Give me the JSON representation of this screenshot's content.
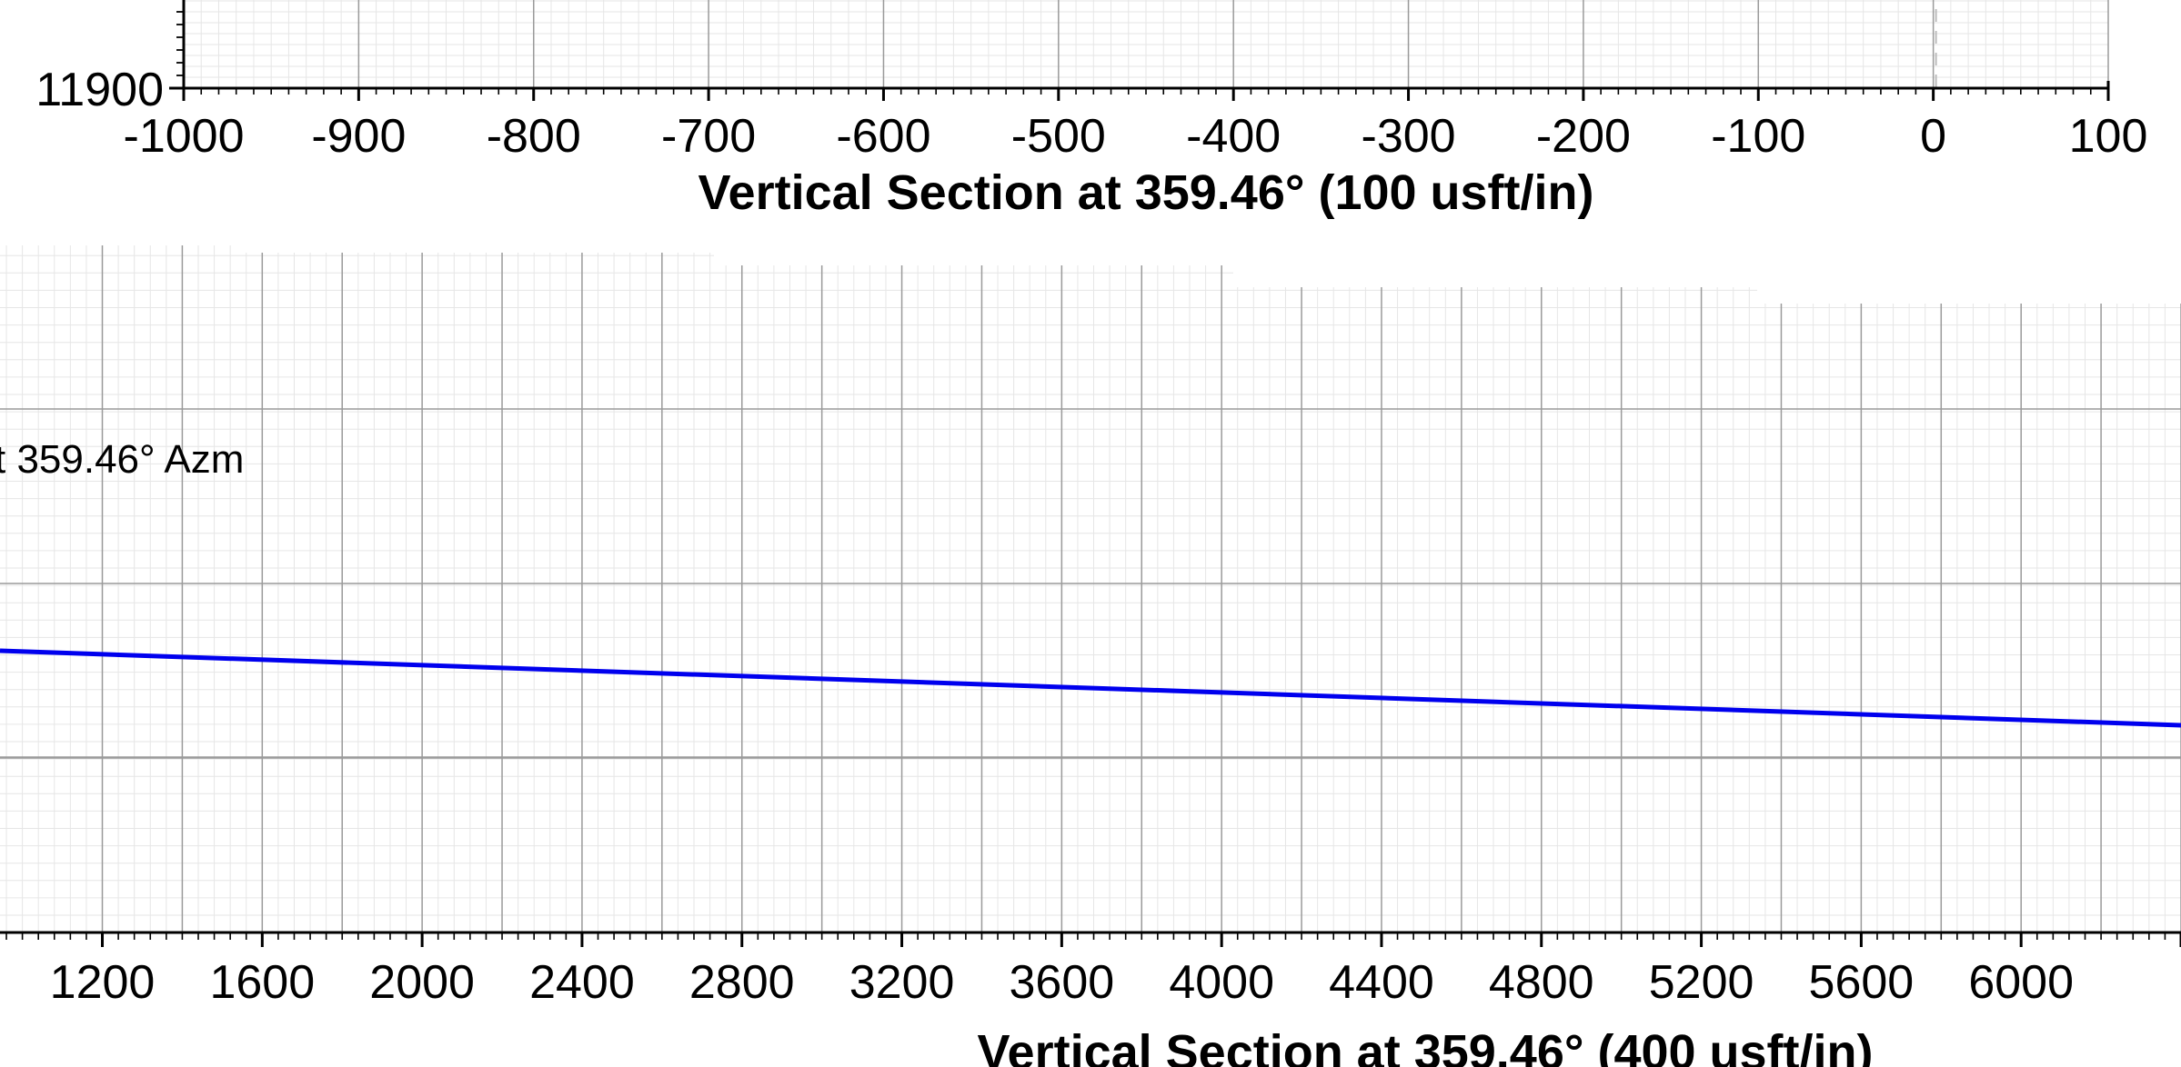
{
  "chart_data": [
    {
      "type": "line",
      "title": "",
      "xlabel": "Vertical Section at 359.46° (100 usft/in)",
      "ylabel": "",
      "xlim": [
        -1000,
        100
      ],
      "x_ticks": [
        -1000,
        -900,
        -800,
        -700,
        -600,
        -500,
        -400,
        -300,
        -200,
        -100,
        0,
        100
      ],
      "y_tick_labels": [
        "11900"
      ],
      "grid": true,
      "series": []
    },
    {
      "type": "line",
      "title": "",
      "xlabel": "Vertical Section at 359.46° (400 usft/in)",
      "ylabel": "",
      "xlim": [
        944,
        6400
      ],
      "x_ticks": [
        1200,
        1600,
        2000,
        2400,
        2800,
        3200,
        3600,
        4000,
        4400,
        4800,
        5200,
        5600,
        6000
      ],
      "annotation": "t 359.46° Azm",
      "grid": true,
      "series": [
        {
          "color": "#0000ee",
          "x": [
            944,
            6400
          ],
          "y": [
            0,
            146
          ]
        }
      ]
    }
  ]
}
